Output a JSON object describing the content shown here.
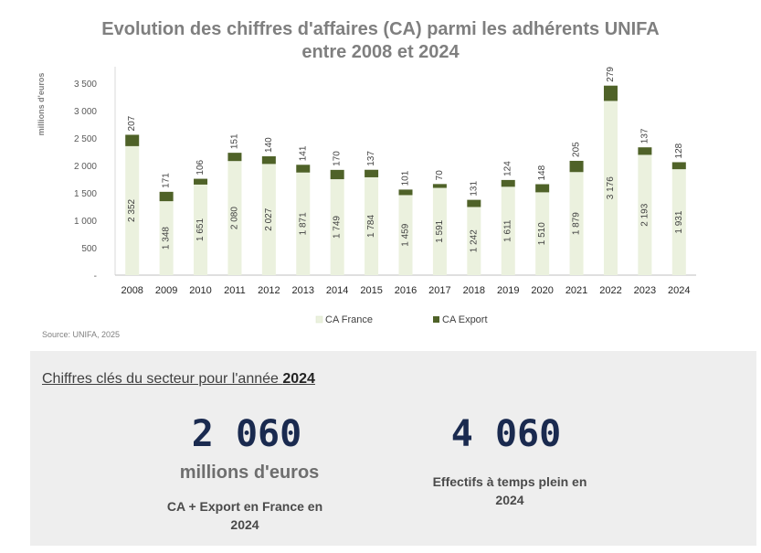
{
  "chart_data": {
    "type": "bar",
    "stacked": true,
    "title": "Evolution des chiffres d'affaires (CA) parmi les adhérents UNIFA",
    "subtitle": "entre 2008 et 2024",
    "ylabel": "millions d'euros",
    "xlabel": "",
    "ylim": [
      0,
      3500
    ],
    "yticks": [
      0,
      500,
      1000,
      1500,
      2000,
      2500,
      3000,
      3500
    ],
    "ytick_labels": [
      "-",
      "500",
      "1 000",
      "1 500",
      "2 000",
      "2 500",
      "3 000",
      "3 500"
    ],
    "grid": false,
    "legend": "bottom",
    "categories": [
      "2008",
      "2009",
      "2010",
      "2011",
      "2012",
      "2013",
      "2014",
      "2015",
      "2016",
      "2017",
      "2018",
      "2019",
      "2020",
      "2021",
      "2022",
      "2023",
      "2024"
    ],
    "series": [
      {
        "name": "CA France",
        "color": "#ebf1de",
        "values": [
          2352,
          1348,
          1651,
          2080,
          2027,
          1871,
          1749,
          1784,
          1459,
          1591,
          1242,
          1611,
          1510,
          1879,
          3176,
          2193,
          1931
        ],
        "labels": [
          "2 352",
          "1 348",
          "1 651",
          "2 080",
          "2 027",
          "1 871",
          "1 749",
          "1 784",
          "1 459",
          "1 591",
          "1 242",
          "1 611",
          "1 510",
          "1 879",
          "3 176",
          "2 193",
          "1 931"
        ]
      },
      {
        "name": "CA Export",
        "color": "#4f6228",
        "values": [
          207,
          171,
          106,
          151,
          140,
          141,
          170,
          137,
          101,
          70,
          131,
          124,
          148,
          205,
          279,
          137,
          128
        ],
        "labels": [
          "207",
          "171",
          "106",
          "151",
          "140",
          "141",
          "170",
          "137",
          "101",
          "70",
          "131",
          "124",
          "148",
          "205",
          "279",
          "137",
          "128"
        ]
      }
    ],
    "source": "Source: UNIFA, 2025"
  },
  "key_figures": {
    "heading_prefix": "Chiffres clés du secteur pour l'année ",
    "heading_year": "2024",
    "figure1": {
      "value": "2 060",
      "unit": "millions d'euros",
      "caption_line1": "CA + Export en France en",
      "caption_line2": "2024"
    },
    "figure2": {
      "value": "4 060",
      "caption_line1": "Effectifs à temps plein en",
      "caption_line2": "2024"
    }
  }
}
